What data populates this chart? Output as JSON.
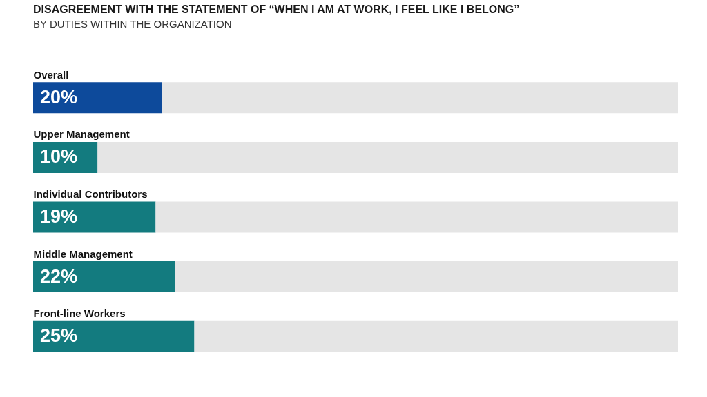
{
  "chart_data": {
    "type": "bar",
    "orientation": "horizontal",
    "stacked": true,
    "title": "DISAGREEMENT WITH THE STATEMENT OF “WHEN I AM AT WORK, I FEEL LIKE I BELONG”",
    "subtitle": "BY DUTIES WITHIN THE ORGANIZATION",
    "categories": [
      "Overall",
      "Upper Management",
      "Individual Contributors",
      "Middle Management",
      "Front-line Workers"
    ],
    "series": [
      {
        "colors": [
          "#0d4a9b",
          "#137b7f",
          "#137b7f",
          "#137b7f",
          "#137b7f"
        ],
        "values": [
          20,
          10,
          19,
          22,
          25
        ],
        "value_labels": [
          "20%",
          "10%",
          "19%",
          "22%",
          "25%"
        ]
      },
      {
        "color": "#e5e5e5",
        "values": [
          80,
          90,
          81,
          78,
          75
        ]
      }
    ],
    "xlim": [
      0,
      100
    ],
    "tick_labels": "y"
  }
}
